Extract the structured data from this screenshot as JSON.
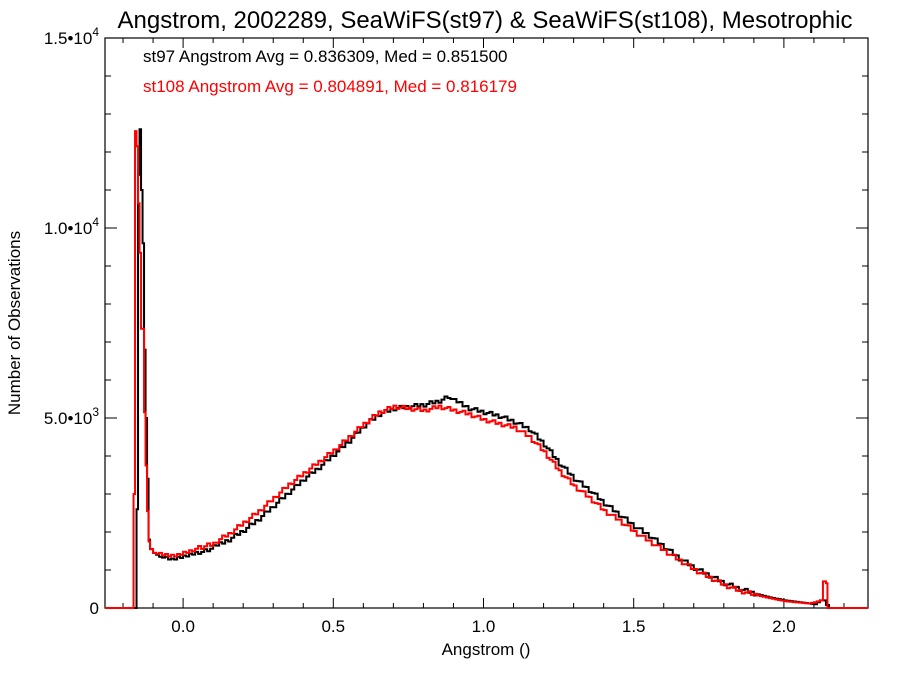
{
  "chart_data": {
    "type": "line",
    "title": "Angstrom, 2002289, SeaWiFS(st97) & SeaWiFS(st108), Mesotrophic",
    "xlabel": "Angstrom ()",
    "ylabel": "Number of Observations",
    "xlim": [
      -0.26,
      2.28
    ],
    "ylim": [
      0,
      15000
    ],
    "x_ticks": [
      {
        "value": 0.0,
        "label": "0.0"
      },
      {
        "value": 0.5,
        "label": "0.5"
      },
      {
        "value": 1.0,
        "label": "1.0"
      },
      {
        "value": 1.5,
        "label": "1.5"
      },
      {
        "value": 2.0,
        "label": "2.0"
      }
    ],
    "y_ticks": [
      {
        "value": 0,
        "label": "0",
        "exp": ""
      },
      {
        "value": 5000,
        "label": "5.0•10",
        "exp": "3"
      },
      {
        "value": 10000,
        "label": "1.0•10",
        "exp": "4"
      },
      {
        "value": 15000,
        "label": "1.5•10",
        "exp": "4"
      }
    ],
    "annotations": [
      {
        "text": "st97 Angstrom Avg = 0.836309, Med = 0.851500",
        "color": "#000000"
      },
      {
        "text": "st108 Angstrom Avg = 0.804891, Med = 0.816179",
        "color": "#ff0000"
      }
    ],
    "series": [
      {
        "color": "#000000",
        "points": [
          [
            -0.26,
            0
          ],
          [
            -0.16,
            0
          ],
          [
            -0.155,
            2600
          ],
          [
            -0.15,
            11400
          ],
          [
            -0.145,
            12600
          ],
          [
            -0.14,
            11000
          ],
          [
            -0.135,
            9600
          ],
          [
            -0.13,
            6800
          ],
          [
            -0.125,
            5000
          ],
          [
            -0.12,
            3400
          ],
          [
            -0.115,
            1800
          ],
          [
            -0.11,
            1550
          ],
          [
            -0.1,
            1450
          ],
          [
            -0.09,
            1400
          ],
          [
            -0.08,
            1350
          ],
          [
            -0.06,
            1300
          ],
          [
            -0.04,
            1250
          ],
          [
            -0.02,
            1300
          ],
          [
            0.0,
            1330
          ],
          [
            0.02,
            1380
          ],
          [
            0.05,
            1450
          ],
          [
            0.08,
            1520
          ],
          [
            0.1,
            1600
          ],
          [
            0.15,
            1800
          ],
          [
            0.2,
            2050
          ],
          [
            0.25,
            2350
          ],
          [
            0.3,
            2700
          ],
          [
            0.35,
            3050
          ],
          [
            0.4,
            3400
          ],
          [
            0.45,
            3700
          ],
          [
            0.5,
            4050
          ],
          [
            0.55,
            4400
          ],
          [
            0.6,
            4800
          ],
          [
            0.65,
            5100
          ],
          [
            0.7,
            5250
          ],
          [
            0.75,
            5300
          ],
          [
            0.8,
            5350
          ],
          [
            0.85,
            5450
          ],
          [
            0.88,
            5550
          ],
          [
            0.9,
            5450
          ],
          [
            0.95,
            5250
          ],
          [
            1.0,
            5150
          ],
          [
            1.05,
            5050
          ],
          [
            1.1,
            4900
          ],
          [
            1.15,
            4700
          ],
          [
            1.2,
            4300
          ],
          [
            1.25,
            3800
          ],
          [
            1.3,
            3400
          ],
          [
            1.35,
            3100
          ],
          [
            1.4,
            2750
          ],
          [
            1.45,
            2450
          ],
          [
            1.5,
            2150
          ],
          [
            1.55,
            1900
          ],
          [
            1.6,
            1600
          ],
          [
            1.65,
            1300
          ],
          [
            1.7,
            1050
          ],
          [
            1.75,
            850
          ],
          [
            1.8,
            650
          ],
          [
            1.85,
            500
          ],
          [
            1.9,
            380
          ],
          [
            1.95,
            280
          ],
          [
            2.0,
            200
          ],
          [
            2.05,
            150
          ],
          [
            2.08,
            120
          ],
          [
            2.1,
            100
          ],
          [
            2.12,
            200
          ],
          [
            2.13,
            200
          ],
          [
            2.14,
            80
          ],
          [
            2.15,
            0
          ],
          [
            2.28,
            0
          ]
        ]
      },
      {
        "color": "#ff0000",
        "points": [
          [
            -0.26,
            0
          ],
          [
            -0.17,
            0
          ],
          [
            -0.165,
            3000
          ],
          [
            -0.16,
            12600
          ],
          [
            -0.155,
            12200
          ],
          [
            -0.15,
            10700
          ],
          [
            -0.145,
            9400
          ],
          [
            -0.14,
            7400
          ],
          [
            -0.13,
            5200
          ],
          [
            -0.125,
            3800
          ],
          [
            -0.12,
            2600
          ],
          [
            -0.115,
            1800
          ],
          [
            -0.11,
            1600
          ],
          [
            -0.1,
            1500
          ],
          [
            -0.08,
            1450
          ],
          [
            -0.06,
            1420
          ],
          [
            -0.04,
            1400
          ],
          [
            -0.02,
            1420
          ],
          [
            0.0,
            1480
          ],
          [
            0.02,
            1520
          ],
          [
            0.05,
            1580
          ],
          [
            0.08,
            1650
          ],
          [
            0.1,
            1720
          ],
          [
            0.15,
            1950
          ],
          [
            0.2,
            2250
          ],
          [
            0.25,
            2550
          ],
          [
            0.3,
            2900
          ],
          [
            0.35,
            3250
          ],
          [
            0.4,
            3550
          ],
          [
            0.45,
            3850
          ],
          [
            0.5,
            4150
          ],
          [
            0.55,
            4500
          ],
          [
            0.6,
            4850
          ],
          [
            0.65,
            5150
          ],
          [
            0.7,
            5300
          ],
          [
            0.75,
            5250
          ],
          [
            0.8,
            5200
          ],
          [
            0.85,
            5300
          ],
          [
            0.9,
            5200
          ],
          [
            0.95,
            5100
          ],
          [
            1.0,
            4950
          ],
          [
            1.05,
            4850
          ],
          [
            1.1,
            4750
          ],
          [
            1.15,
            4500
          ],
          [
            1.2,
            4100
          ],
          [
            1.25,
            3600
          ],
          [
            1.3,
            3200
          ],
          [
            1.35,
            2900
          ],
          [
            1.4,
            2550
          ],
          [
            1.45,
            2300
          ],
          [
            1.5,
            2000
          ],
          [
            1.55,
            1750
          ],
          [
            1.6,
            1500
          ],
          [
            1.65,
            1250
          ],
          [
            1.7,
            1000
          ],
          [
            1.75,
            800
          ],
          [
            1.8,
            600
          ],
          [
            1.85,
            450
          ],
          [
            1.9,
            350
          ],
          [
            1.95,
            260
          ],
          [
            2.0,
            180
          ],
          [
            2.05,
            140
          ],
          [
            2.08,
            120
          ],
          [
            2.1,
            150
          ],
          [
            2.12,
            200
          ],
          [
            2.13,
            700
          ],
          [
            2.14,
            700
          ],
          [
            2.145,
            0
          ],
          [
            2.28,
            0
          ]
        ]
      }
    ]
  }
}
